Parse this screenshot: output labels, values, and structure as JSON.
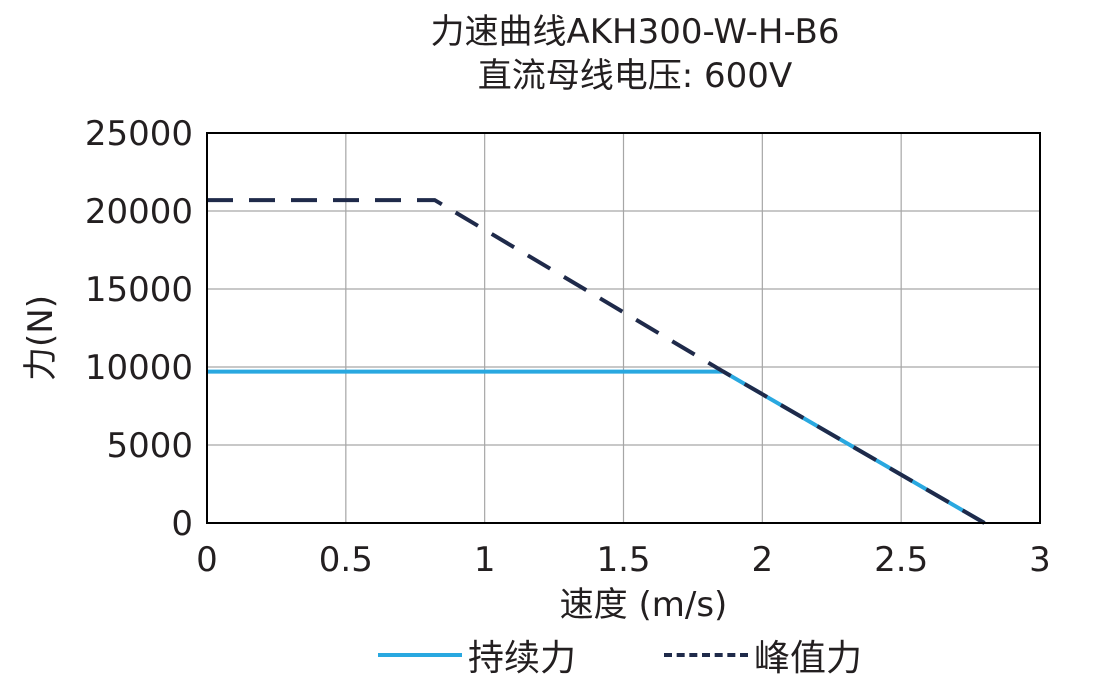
{
  "chart_data": {
    "type": "line",
    "title": "力速曲线AKH300-W-H-B6",
    "subtitle": "直流母线电压: 600V",
    "xlabel": "速度 (m/s)",
    "ylabel": "力(N)",
    "xlim": [
      0,
      3
    ],
    "ylim": [
      0,
      25000
    ],
    "xticks": [
      0,
      0.5,
      1,
      1.5,
      2,
      2.5,
      3
    ],
    "xtick_labels": [
      "0",
      "0.5",
      "1",
      "1.5",
      "2",
      "2.5",
      "3"
    ],
    "yticks": [
      0,
      5000,
      10000,
      15000,
      20000,
      25000
    ],
    "ytick_labels": [
      "0",
      "5000",
      "10000",
      "15000",
      "20000",
      "25000"
    ],
    "grid": true,
    "legend_position": "bottom",
    "series": [
      {
        "name": "持续力",
        "style": "solid",
        "color": "#29a8e0",
        "x": [
          0,
          1.86,
          2.8
        ],
        "y": [
          9700,
          9700,
          0
        ]
      },
      {
        "name": "峰值力",
        "style": "dashed",
        "color": "#1f2a4a",
        "x": [
          0,
          0.82,
          1.86,
          2.8
        ],
        "y": [
          20700,
          20700,
          9700,
          0
        ]
      }
    ]
  }
}
